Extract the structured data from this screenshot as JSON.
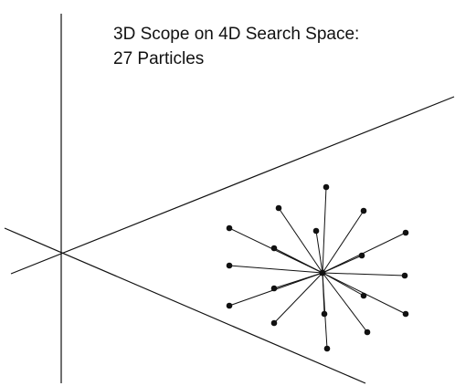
{
  "title": {
    "line1": "3D Scope on 4D Search Space:",
    "line2": "27 Particles"
  },
  "colors": {
    "stroke": "#111111",
    "background": "#ffffff"
  }
}
